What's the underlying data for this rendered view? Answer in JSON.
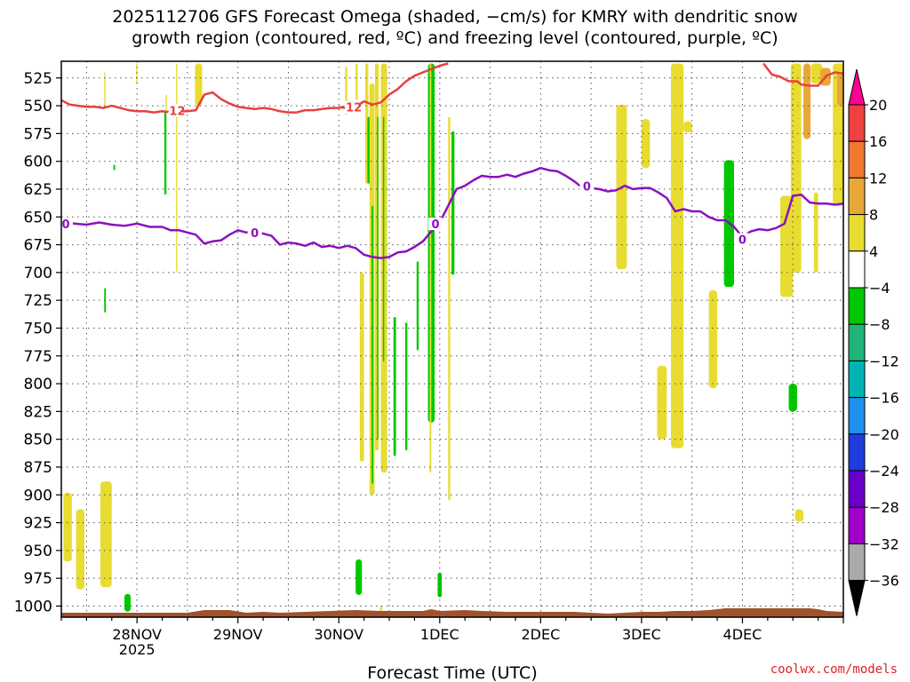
{
  "title_line1": "2025112706 GFS Forecast Omega (shaded, −cm/s) for KMRY with dendritic snow",
  "title_line2": "growth region (contoured, red, ºC) and freezing level (contoured, purple, ºC)",
  "watermark": "coolwx.com/models",
  "chart_data": {
    "type": "heatmap",
    "xlabel": "Forecast Time (UTC)",
    "x_unit": "hours since 2025-11-27 06Z",
    "xlim": [
      0,
      186
    ],
    "x_ticks": [
      {
        "x": 18,
        "label": "28NOV",
        "sublabel": "2025"
      },
      {
        "x": 42,
        "label": "29NOV"
      },
      {
        "x": 66,
        "label": "30NOV"
      },
      {
        "x": 90,
        "label": "1DEC"
      },
      {
        "x": 114,
        "label": "2DEC"
      },
      {
        "x": 138,
        "label": "3DEC"
      },
      {
        "x": 162,
        "label": "4DEC"
      }
    ],
    "ylabel": "",
    "y_unit": "hPa",
    "ylim": [
      1010,
      510
    ],
    "y_ticks": [
      525,
      550,
      575,
      600,
      625,
      650,
      675,
      700,
      725,
      750,
      775,
      800,
      825,
      850,
      875,
      900,
      925,
      950,
      975,
      1000
    ],
    "colorbar": {
      "labels": [
        "20",
        "16",
        "12",
        "8",
        "4",
        "−4",
        "−8",
        "−12",
        "−16",
        "−20",
        "−24",
        "−28",
        "−32",
        "−36"
      ],
      "colors": [
        "#ff0090",
        "#f04040",
        "#f07830",
        "#e8a838",
        "#e8dc30",
        "#ffffff",
        "#00c800",
        "#20b478",
        "#00b4b4",
        "#2090f0",
        "#1e3cdc",
        "#6a00c8",
        "#a000c8",
        "#aaaaaa",
        "#000000"
      ]
    },
    "contours": [
      {
        "label": "-12",
        "color": "#e84040",
        "label_positions": [
          [
            27,
            555
          ],
          [
            69,
            552
          ]
        ],
        "points": [
          [
            0,
            545
          ],
          [
            2,
            549
          ],
          [
            4,
            550
          ],
          [
            6,
            551
          ],
          [
            8,
            551
          ],
          [
            10,
            552
          ],
          [
            12,
            550
          ],
          [
            14,
            552
          ],
          [
            16,
            554
          ],
          [
            18,
            555
          ],
          [
            20,
            555
          ],
          [
            22,
            556
          ],
          [
            24,
            555
          ],
          [
            26,
            556
          ],
          [
            28,
            555
          ],
          [
            30,
            555
          ],
          [
            32,
            554
          ],
          [
            34,
            540
          ],
          [
            36,
            538
          ],
          [
            38,
            544
          ],
          [
            40,
            548
          ],
          [
            42,
            551
          ],
          [
            44,
            552
          ],
          [
            46,
            553
          ],
          [
            48,
            552
          ],
          [
            50,
            553
          ],
          [
            52,
            555
          ],
          [
            54,
            556
          ],
          [
            56,
            556
          ],
          [
            58,
            554
          ],
          [
            60,
            554
          ],
          [
            62,
            553
          ],
          [
            64,
            552
          ],
          [
            66,
            552
          ],
          [
            68,
            550
          ],
          [
            70,
            551
          ],
          [
            72,
            546
          ],
          [
            74,
            549
          ],
          [
            76,
            547
          ],
          [
            78,
            540
          ],
          [
            80,
            535
          ],
          [
            82,
            528
          ],
          [
            84,
            523
          ],
          [
            86,
            520
          ],
          [
            88,
            517
          ],
          [
            90,
            514
          ],
          [
            92,
            512
          ]
        ]
      },
      {
        "label": "-12",
        "color": "#e84040",
        "label_positions": [],
        "points": [
          [
            167,
            512
          ],
          [
            169,
            522
          ],
          [
            171,
            524
          ],
          [
            173,
            528
          ],
          [
            175,
            528
          ],
          [
            176,
            531
          ],
          [
            178,
            532
          ],
          [
            180,
            532
          ],
          [
            182,
            523
          ],
          [
            184,
            520
          ],
          [
            186,
            521
          ]
        ]
      },
      {
        "label": "0",
        "color": "#8c10c0",
        "label_positions": [
          [
            0,
            657
          ],
          [
            46,
            665
          ],
          [
            89,
            657
          ],
          [
            125,
            623
          ],
          [
            162,
            671
          ]
        ],
        "points": [
          [
            0,
            655
          ],
          [
            3,
            656
          ],
          [
            6,
            657
          ],
          [
            9,
            655
          ],
          [
            12,
            657
          ],
          [
            15,
            658
          ],
          [
            18,
            656
          ],
          [
            21,
            659
          ],
          [
            24,
            659
          ],
          [
            26,
            662
          ],
          [
            28,
            662
          ],
          [
            30,
            664
          ],
          [
            32,
            666
          ],
          [
            34,
            674
          ],
          [
            36,
            672
          ],
          [
            38,
            671
          ],
          [
            40,
            666
          ],
          [
            42,
            662
          ],
          [
            44,
            664
          ],
          [
            46,
            663
          ],
          [
            48,
            665
          ],
          [
            50,
            667
          ],
          [
            52,
            675
          ],
          [
            54,
            673
          ],
          [
            56,
            674
          ],
          [
            58,
            676
          ],
          [
            60,
            673
          ],
          [
            62,
            677
          ],
          [
            64,
            676
          ],
          [
            66,
            678
          ],
          [
            68,
            676
          ],
          [
            70,
            678
          ],
          [
            72,
            684
          ],
          [
            74,
            686
          ],
          [
            76,
            687
          ],
          [
            78,
            686
          ],
          [
            80,
            682
          ],
          [
            82,
            681
          ],
          [
            84,
            677
          ],
          [
            86,
            672
          ],
          [
            88,
            663
          ],
          [
            90,
            655
          ],
          [
            92,
            640
          ],
          [
            94,
            625
          ],
          [
            96,
            622
          ],
          [
            98,
            617
          ],
          [
            100,
            613
          ],
          [
            102,
            614
          ],
          [
            104,
            614
          ],
          [
            106,
            612
          ],
          [
            108,
            614
          ],
          [
            110,
            611
          ],
          [
            112,
            609
          ],
          [
            114,
            606
          ],
          [
            116,
            608
          ],
          [
            118,
            609
          ],
          [
            120,
            613
          ],
          [
            122,
            618
          ],
          [
            124,
            624
          ],
          [
            126,
            624
          ],
          [
            128,
            625
          ],
          [
            130,
            627
          ],
          [
            132,
            626
          ],
          [
            134,
            622
          ],
          [
            136,
            625
          ],
          [
            138,
            624
          ],
          [
            140,
            624
          ],
          [
            142,
            628
          ],
          [
            144,
            633
          ],
          [
            146,
            645
          ],
          [
            148,
            643
          ],
          [
            150,
            645
          ],
          [
            152,
            645
          ],
          [
            154,
            650
          ],
          [
            156,
            653
          ],
          [
            158,
            653
          ],
          [
            160,
            659
          ],
          [
            162,
            668
          ],
          [
            164,
            663
          ],
          [
            166,
            661
          ],
          [
            168,
            662
          ],
          [
            170,
            660
          ],
          [
            172,
            656
          ],
          [
            174,
            631
          ],
          [
            176,
            630
          ],
          [
            178,
            637
          ],
          [
            180,
            638
          ],
          [
            182,
            638
          ],
          [
            184,
            639
          ],
          [
            186,
            638
          ]
        ]
      }
    ],
    "shaded_cells": [
      {
        "x0": 0.5,
        "x1": 2.5,
        "p0": 898,
        "p1": 960,
        "value": 5,
        "color": "#e8dc30"
      },
      {
        "x0": 3.5,
        "x1": 5.5,
        "p0": 913,
        "p1": 985,
        "value": 5,
        "color": "#e8dc30"
      },
      {
        "x0": 9.3,
        "x1": 12,
        "p0": 888,
        "p1": 983,
        "value": 5,
        "color": "#e8dc30"
      },
      {
        "x0": 15,
        "x1": 16.5,
        "p0": 989,
        "p1": 1005,
        "value": -5,
        "color": "#00c800"
      },
      {
        "x0": 10.2,
        "x1": 10.6,
        "p0": 714,
        "p1": 736,
        "value": -5,
        "color": "#00c800"
      },
      {
        "x0": 12.4,
        "x1": 12.8,
        "p0": 603,
        "p1": 608,
        "value": -5,
        "color": "#00c800"
      },
      {
        "x0": 10.2,
        "x1": 10.5,
        "p0": 520,
        "p1": 550,
        "value": 5,
        "color": "#e8dc30"
      },
      {
        "x0": 17.8,
        "x1": 18.1,
        "p0": 512,
        "p1": 530,
        "value": 5,
        "color": "#e8dc30"
      },
      {
        "x0": 24.5,
        "x1": 25,
        "p0": 555,
        "p1": 630,
        "value": -5,
        "color": "#00c800"
      },
      {
        "x0": 24.8,
        "x1": 25.1,
        "p0": 540,
        "p1": 556,
        "value": 5,
        "color": "#e8dc30"
      },
      {
        "x0": 27.3,
        "x1": 27.6,
        "p0": 512,
        "p1": 700,
        "value": 5,
        "color": "#e8dc30"
      },
      {
        "x0": 31.8,
        "x1": 33.5,
        "p0": 512,
        "p1": 550,
        "value": 5,
        "color": "#e8dc30"
      },
      {
        "x0": 67.5,
        "x1": 68,
        "p0": 515,
        "p1": 558,
        "value": 5,
        "color": "#e8dc30"
      },
      {
        "x0": 70,
        "x1": 70.5,
        "p0": 512,
        "p1": 545,
        "value": 5,
        "color": "#e8dc30"
      },
      {
        "x0": 70,
        "x1": 71.5,
        "p0": 958,
        "p1": 990,
        "value": -5,
        "color": "#00c800"
      },
      {
        "x0": 71,
        "x1": 72,
        "p0": 700,
        "p1": 870,
        "value": 5,
        "color": "#e8dc30"
      },
      {
        "x0": 72.3,
        "x1": 73,
        "p0": 512,
        "p1": 620,
        "value": 5,
        "color": "#e8dc30"
      },
      {
        "x0": 72.8,
        "x1": 73.6,
        "p0": 560,
        "p1": 620,
        "value": -5,
        "color": "#00c800"
      },
      {
        "x0": 73.3,
        "x1": 74.5,
        "p0": 530,
        "p1": 900,
        "value": 5,
        "color": "#e8dc30"
      },
      {
        "x0": 73.8,
        "x1": 74.2,
        "p0": 640,
        "p1": 890,
        "value": -5,
        "color": "#00c800"
      },
      {
        "x0": 74.6,
        "x1": 75.5,
        "p0": 512,
        "p1": 860,
        "value": 5,
        "color": "#e8dc30"
      },
      {
        "x0": 75.1,
        "x1": 75.4,
        "p0": 560,
        "p1": 850,
        "value": -5,
        "color": "#00c800"
      },
      {
        "x0": 76,
        "x1": 77.5,
        "p0": 512,
        "p1": 880,
        "value": 5,
        "color": "#e8dc30"
      },
      {
        "x0": 76.5,
        "x1": 76.8,
        "p0": 560,
        "p1": 780,
        "value": -5,
        "color": "#00c800"
      },
      {
        "x0": 75.8,
        "x1": 76.3,
        "p0": 1000,
        "p1": 1006,
        "value": 5,
        "color": "#e8dc30"
      },
      {
        "x0": 79,
        "x1": 79.6,
        "p0": 740,
        "p1": 865,
        "value": -5,
        "color": "#00c800"
      },
      {
        "x0": 81.8,
        "x1": 82.3,
        "p0": 745,
        "p1": 860,
        "value": -5,
        "color": "#00c800"
      },
      {
        "x0": 84.5,
        "x1": 85,
        "p0": 690,
        "p1": 770,
        "value": -5,
        "color": "#00c800"
      },
      {
        "x0": 87.2,
        "x1": 88.8,
        "p0": 512,
        "p1": 835,
        "value": -5,
        "color": "#00c800"
      },
      {
        "x0": 87.6,
        "x1": 88,
        "p0": 512,
        "p1": 880,
        "value": 5,
        "color": "#e8dc30"
      },
      {
        "x0": 89.5,
        "x1": 90.5,
        "p0": 970,
        "p1": 992,
        "value": -5,
        "color": "#00c800"
      },
      {
        "x0": 92,
        "x1": 92.5,
        "p0": 560,
        "p1": 905,
        "value": 5,
        "color": "#e8dc30"
      },
      {
        "x0": 92.8,
        "x1": 93.5,
        "p0": 573,
        "p1": 702,
        "value": -5,
        "color": "#00c800"
      },
      {
        "x0": 132,
        "x1": 134.5,
        "p0": 549,
        "p1": 697,
        "value": 5,
        "color": "#e8dc30"
      },
      {
        "x0": 138,
        "x1": 140,
        "p0": 562,
        "p1": 606,
        "value": 5,
        "color": "#e8dc30"
      },
      {
        "x0": 141.7,
        "x1": 144,
        "p0": 784,
        "p1": 850,
        "value": 5,
        "color": "#e8dc30"
      },
      {
        "x0": 145,
        "x1": 148,
        "p0": 512,
        "p1": 858,
        "value": 5,
        "color": "#e8dc30"
      },
      {
        "x0": 148,
        "x1": 150,
        "p0": 564,
        "p1": 574,
        "value": 5,
        "color": "#e8dc30"
      },
      {
        "x0": 154,
        "x1": 156,
        "p0": 716,
        "p1": 804,
        "value": 5,
        "color": "#e8dc30"
      },
      {
        "x0": 157.6,
        "x1": 160,
        "p0": 599,
        "p1": 713,
        "value": -5,
        "color": "#00c800"
      },
      {
        "x0": 171,
        "x1": 174,
        "p0": 631,
        "p1": 722,
        "value": 5,
        "color": "#e8dc30"
      },
      {
        "x0": 173.5,
        "x1": 176,
        "p0": 512,
        "p1": 700,
        "value": 5,
        "color": "#e8dc30"
      },
      {
        "x0": 173,
        "x1": 175,
        "p0": 800,
        "p1": 825,
        "value": -5,
        "color": "#00c800"
      },
      {
        "x0": 174.5,
        "x1": 176.5,
        "p0": 913,
        "p1": 924,
        "value": 5,
        "color": "#e8dc30"
      },
      {
        "x0": 176.5,
        "x1": 178.2,
        "p0": 512,
        "p1": 580,
        "value": 8,
        "color": "#e8a838"
      },
      {
        "x0": 178.3,
        "x1": 181,
        "p0": 512,
        "p1": 530,
        "value": 5,
        "color": "#e8dc30"
      },
      {
        "x0": 180.5,
        "x1": 183,
        "p0": 516,
        "p1": 532,
        "value": 8,
        "color": "#e8a838"
      },
      {
        "x0": 183.5,
        "x1": 186,
        "p0": 512,
        "p1": 640,
        "value": 5,
        "color": "#e8dc30"
      },
      {
        "x0": 184.5,
        "x1": 186,
        "p0": 520,
        "p1": 550,
        "value": 8,
        "color": "#e8a838"
      },
      {
        "x0": 179,
        "x1": 180,
        "p0": 628,
        "p1": 700,
        "value": 5,
        "color": "#e8dc30"
      }
    ],
    "terrain_color": "#a0522d"
  }
}
